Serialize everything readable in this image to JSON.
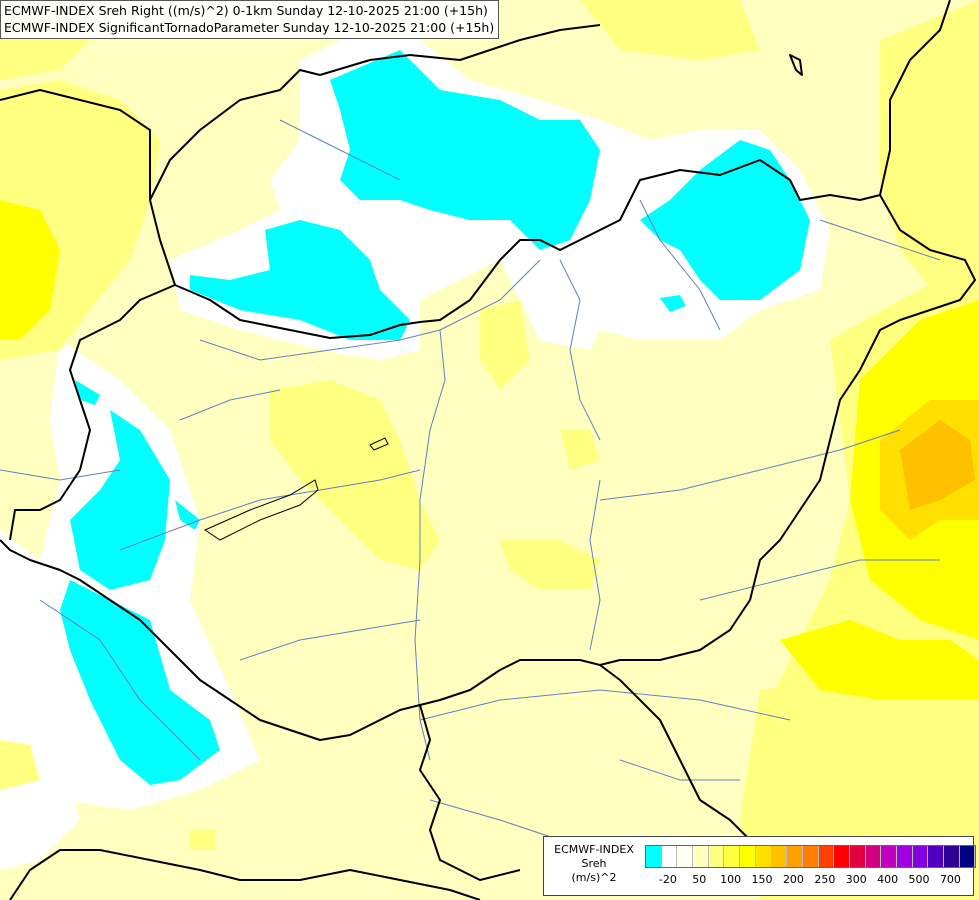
{
  "title": {
    "line1": "ECMWF-INDEX Sreh Right ((m/s)^2) 0-1km Sunday 12-10-2025 21:00 (+15h)",
    "line2": "ECMWF-INDEX SignificantTornadoParameter Sunday 12-10-2025 21:00 (+15h)"
  },
  "legend": {
    "name_line1": "ECMWF-INDEX",
    "name_line2": "Sreh",
    "unit": "(m/s)^2",
    "colors": [
      "#00ffff",
      "#ffffff",
      "#fffff0",
      "#ffffc0",
      "#ffff80",
      "#ffff40",
      "#ffff00",
      "#ffdf00",
      "#ffc000",
      "#ffa000",
      "#ff8000",
      "#ff4000",
      "#ff0000",
      "#e00040",
      "#d00080",
      "#c000c0",
      "#a000e0",
      "#8000e0",
      "#5000c0",
      "#300090",
      "#000080"
    ],
    "ticks": [
      "-20",
      "50",
      "100",
      "150",
      "200",
      "250",
      "300",
      "400",
      "500",
      "700"
    ]
  },
  "colors": {
    "background": "#ffffc0",
    "cyan": "#00ffff",
    "white": "#ffffff",
    "yellow1": "#ffff80",
    "yellow2": "#ffff00",
    "orange1": "#ffdf00",
    "orange2": "#ffc000",
    "border": "#000000",
    "river": "#6080c0"
  }
}
